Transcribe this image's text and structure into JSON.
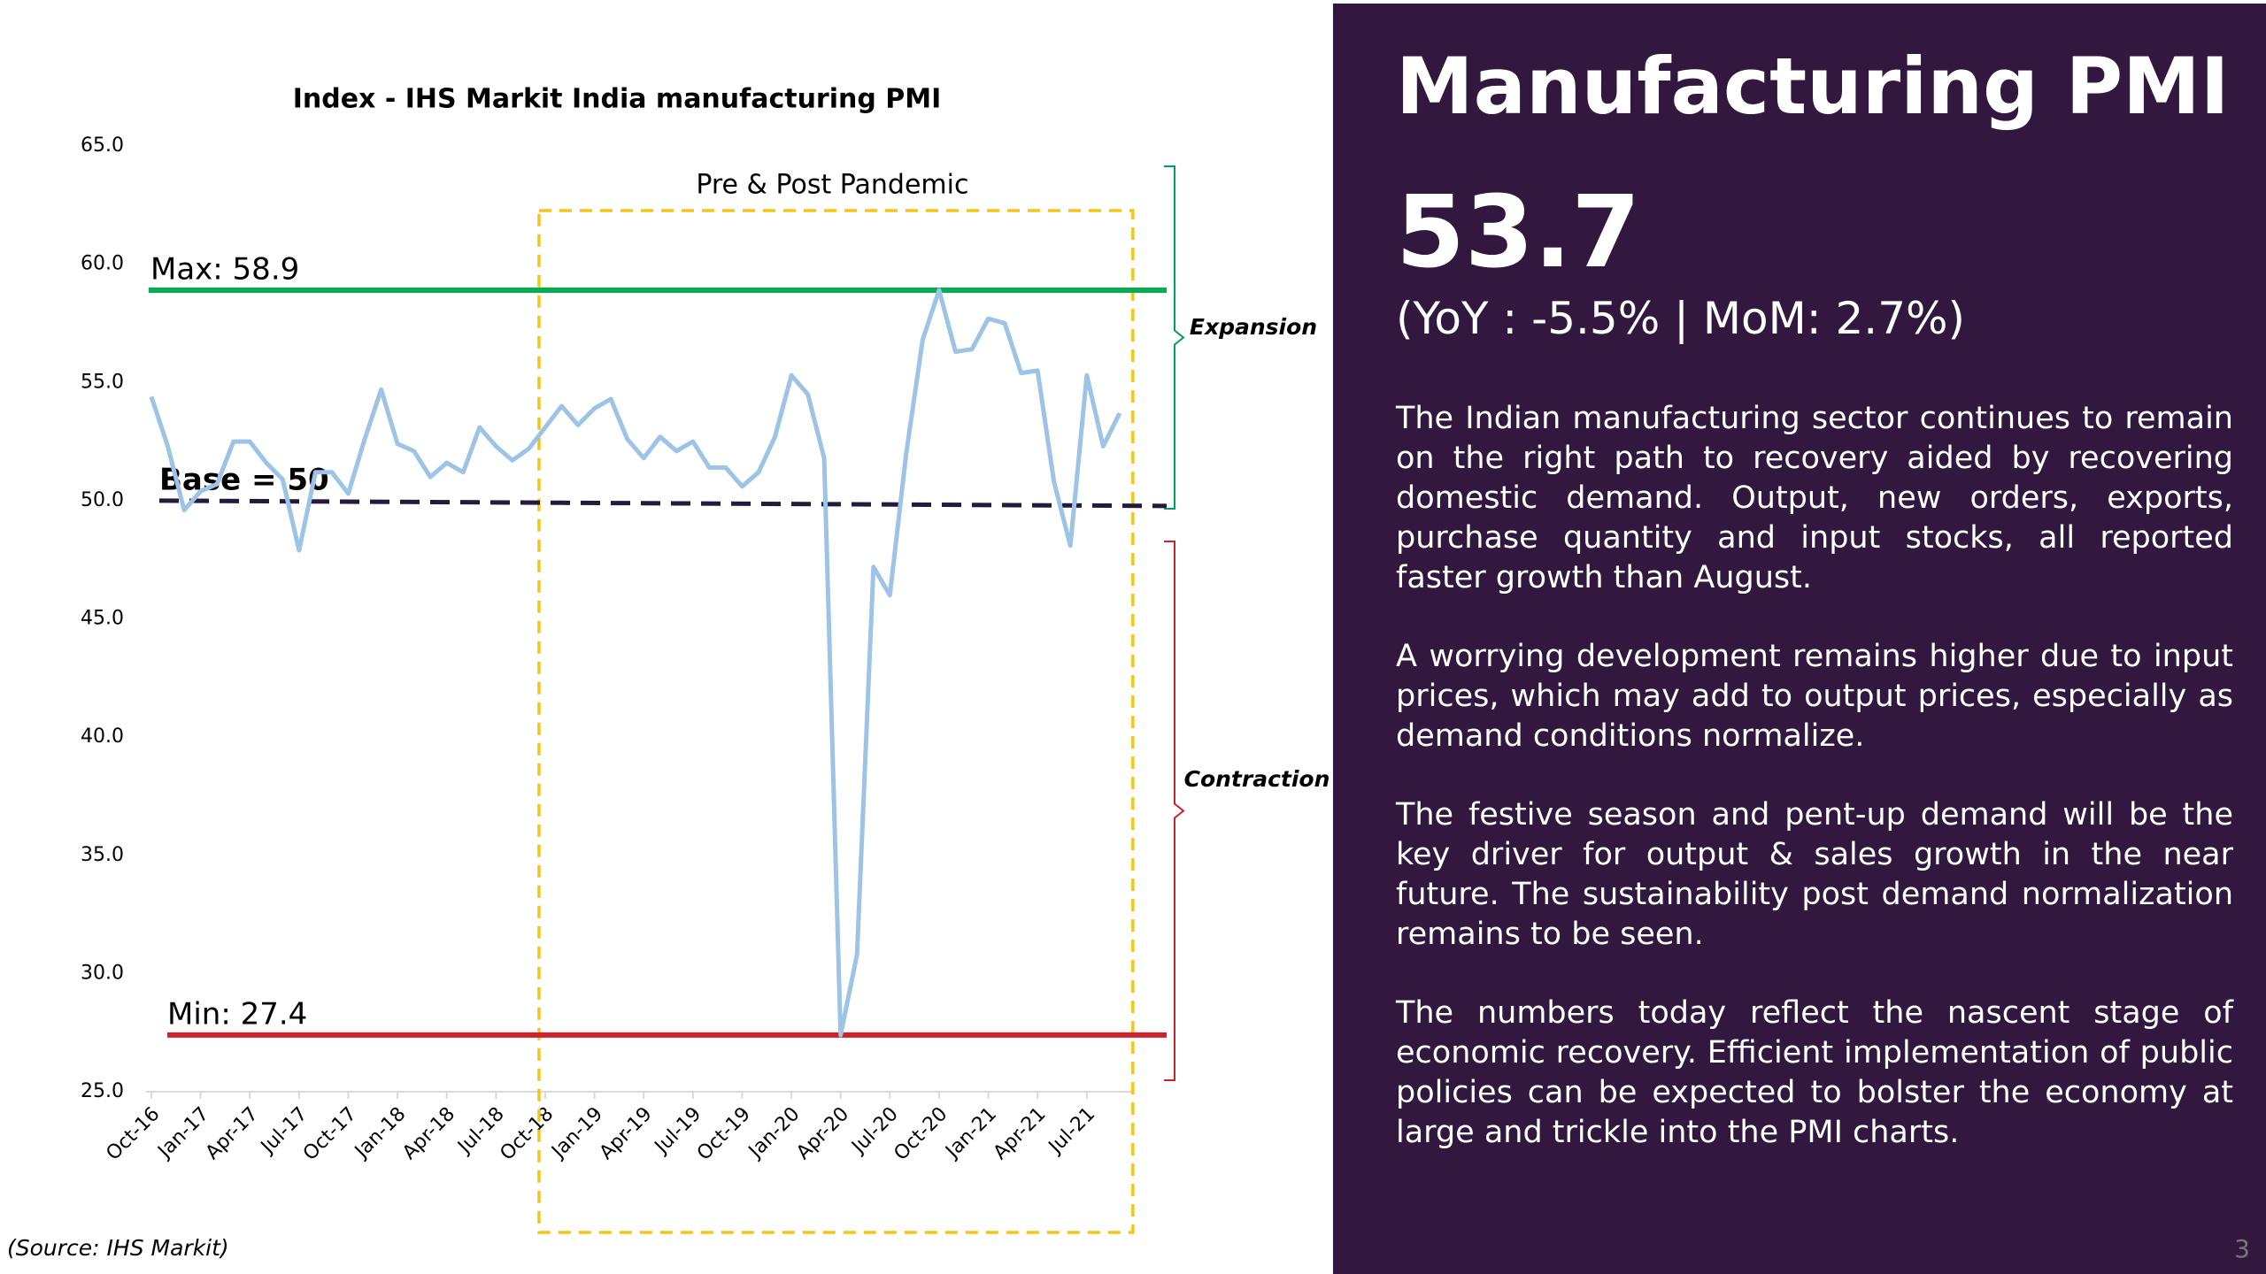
{
  "chart_data": {
    "type": "line",
    "title": "Index - IHS Markit India  manufacturing PMI",
    "categories": [
      "Oct-16",
      null,
      null,
      "Jan-17",
      null,
      null,
      "Apr-17",
      null,
      null,
      "Jul-17",
      null,
      null,
      "Oct-17",
      null,
      null,
      "Jan-18",
      null,
      null,
      "Apr-18",
      null,
      null,
      "Jul-18",
      null,
      null,
      "Oct-18",
      null,
      null,
      "Jan-19",
      null,
      null,
      "Apr-19",
      null,
      null,
      "Jul-19",
      null,
      null,
      "Oct-19",
      null,
      null,
      "Jan-20",
      null,
      null,
      "Apr-20",
      null,
      null,
      "Jul-20",
      null,
      null,
      "Oct-20",
      null,
      null,
      "Jan-21",
      null,
      null,
      "Apr-21",
      null,
      null,
      "Jul-21",
      null,
      null
    ],
    "series": [
      {
        "name": "Manufacturing PMI",
        "color": "#9dc3e6",
        "values": [
          54.4,
          52.3,
          49.6,
          50.4,
          50.7,
          52.5,
          52.5,
          51.6,
          50.9,
          47.9,
          51.2,
          51.2,
          50.3,
          52.6,
          54.7,
          52.4,
          52.1,
          51.0,
          51.6,
          51.2,
          53.1,
          52.3,
          51.7,
          52.2,
          53.1,
          54.0,
          53.2,
          53.9,
          54.3,
          52.6,
          51.8,
          52.7,
          52.1,
          52.5,
          51.4,
          51.4,
          50.6,
          51.2,
          52.7,
          55.3,
          54.5,
          51.8,
          27.4,
          30.8,
          47.2,
          46.0,
          52.0,
          56.8,
          58.9,
          56.3,
          56.4,
          57.7,
          57.5,
          55.4,
          55.5,
          50.8,
          48.1,
          55.3,
          52.3,
          53.7
        ]
      }
    ],
    "ylim": [
      25,
      65
    ],
    "yticks": [
      {
        "value": 25,
        "label": "25.0"
      },
      {
        "value": 30,
        "label": "30.0"
      },
      {
        "value": 35,
        "label": "35.0"
      },
      {
        "value": 40,
        "label": "40.0"
      },
      {
        "value": 45,
        "label": "45.0"
      },
      {
        "value": 50,
        "label": "50.0"
      },
      {
        "value": 55,
        "label": "55.0"
      },
      {
        "value": 60,
        "label": "60.0"
      },
      {
        "value": 65,
        "label": "65.0"
      }
    ],
    "reference_lines": [
      {
        "label": "Max: 58.9",
        "value": 58.9,
        "color": "#00b050",
        "style": "solid"
      },
      {
        "label": "Base = 50",
        "value": 50,
        "color": "#231a3d",
        "label_color": "#1f3864",
        "style": "dashed"
      },
      {
        "label": "Min: 27.4",
        "value": 27.4,
        "color": "#d0202a",
        "style": "solid"
      }
    ],
    "highlight": {
      "label": "Pre & Post Pandemic",
      "start": "Oct-18",
      "color": "#f5c518"
    },
    "zones": [
      {
        "label": "Expansion",
        "color": "#00a060"
      },
      {
        "label": "Contraction",
        "color": "#d0202a"
      }
    ]
  },
  "source": "(Source: IHS Markit)",
  "panel": {
    "title": "Manufacturing PMI",
    "value": "53.7",
    "change": "(YoY : -5.5% | MoM: 2.7%)",
    "paragraphs": [
      "The Indian manufacturing sector continues to remain on the right path to recovery aided by recovering domestic demand. Output, new orders, exports, purchase quantity and input stocks, all reported faster growth than August.",
      "A worrying development remains higher due to input prices, which may add to output prices, especially as demand conditions normalize.",
      "The festive season and pent-up demand will be the key driver for output & sales growth in the near future. The sustainability post demand normalization remains to be seen.",
      "The numbers today reflect the nascent stage of economic recovery. Efficient implementation of public policies can be expected to bolster the economy at large and trickle into the PMI charts."
    ]
  },
  "page_number": "3"
}
